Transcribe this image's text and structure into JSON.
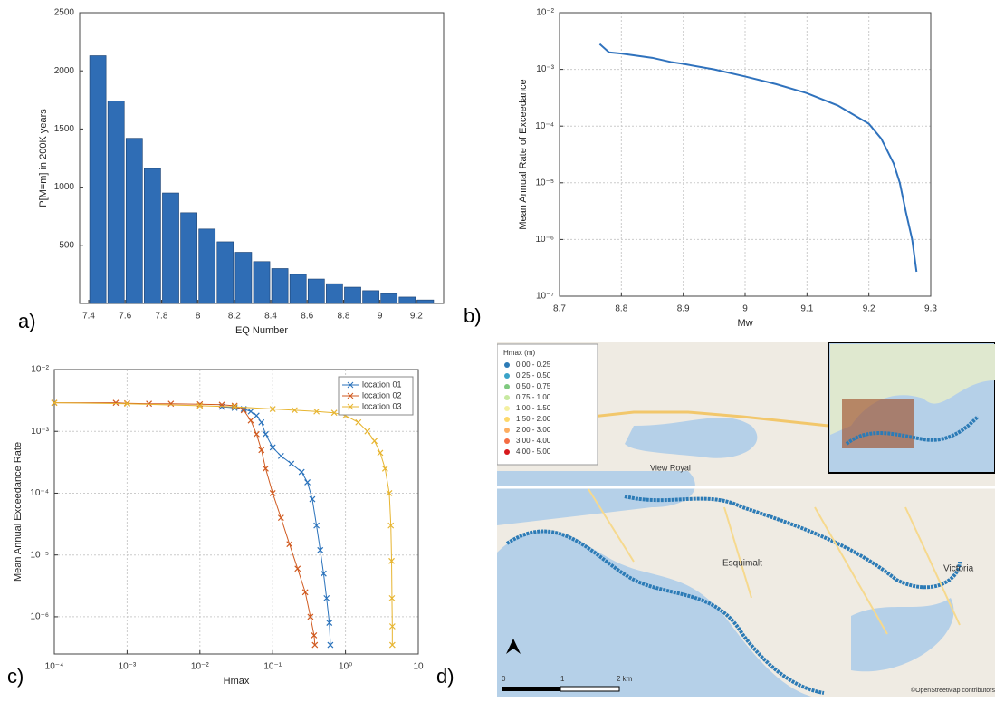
{
  "chart_data": [
    {
      "type": "bar",
      "xlabel": "EQ Number",
      "ylabel": "P[M=m] in 200K years",
      "color": "#2f6db5",
      "x": [
        7.45,
        7.55,
        7.65,
        7.75,
        7.85,
        7.95,
        8.05,
        8.15,
        8.25,
        8.35,
        8.45,
        8.55,
        8.65,
        8.75,
        8.85,
        8.95,
        9.05,
        9.15,
        9.25
      ],
      "values": [
        2130,
        1740,
        1420,
        1160,
        950,
        780,
        640,
        530,
        440,
        360,
        300,
        250,
        210,
        170,
        140,
        110,
        85,
        55,
        30
      ],
      "xlim": [
        7.35,
        9.35
      ],
      "xticks": [
        7.4,
        7.6,
        7.8,
        8,
        8.2,
        8.4,
        8.6,
        8.8,
        9,
        9.2
      ],
      "ylim": [
        0,
        2500
      ],
      "yticks": [
        500,
        1000,
        1500,
        2000,
        2500
      ],
      "grid": false
    },
    {
      "type": "line",
      "xlabel": "Mw",
      "ylabel": "Mean Annual Rate of Exceedance",
      "yscale": "log",
      "grid": true,
      "series": [
        {
          "color": "#2f72bd",
          "x": [
            8.765,
            8.77,
            8.78,
            8.8,
            8.85,
            8.88,
            8.9,
            8.95,
            9.0,
            9.05,
            9.1,
            9.15,
            9.2,
            9.22,
            9.24,
            9.25,
            9.26,
            9.27,
            9.277
          ],
          "values": [
            0.0028,
            0.0025,
            0.002,
            0.0019,
            0.0016,
            0.00135,
            0.00125,
            0.001,
            0.00075,
            0.00055,
            0.00038,
            0.00023,
            0.00011,
            6e-05,
            2.2e-05,
            1e-05,
            3e-06,
            1e-06,
            2.7e-07
          ]
        }
      ],
      "xlim": [
        8.7,
        9.3
      ],
      "xticks": [
        8.7,
        8.8,
        8.9,
        9,
        9.1,
        9.2,
        9.3
      ],
      "ylim": [
        1e-07,
        0.01
      ],
      "yticks": [
        {
          "value": 1e-07,
          "label": "10⁻⁷"
        },
        {
          "value": 1e-06,
          "label": "10⁻⁶"
        },
        {
          "value": 1e-05,
          "label": "10⁻⁵"
        },
        {
          "value": 0.0001,
          "label": "10⁻⁴"
        },
        {
          "value": 0.001,
          "label": "10⁻³"
        },
        {
          "value": 0.01,
          "label": "10⁻²"
        }
      ]
    },
    {
      "type": "line",
      "xlabel": "Hmax",
      "ylabel": "Mean Annual Exceedance Rate",
      "xscale": "log",
      "yscale": "log",
      "grid": true,
      "legend": "upper right",
      "marker": "x",
      "series": [
        {
          "name": "location 01",
          "color": "#2a72bb",
          "x": [
            0.02,
            0.03,
            0.04,
            0.05,
            0.06,
            0.07,
            0.08,
            0.1,
            0.13,
            0.18,
            0.25,
            0.3,
            0.35,
            0.4,
            0.45,
            0.5,
            0.55,
            0.6,
            0.62
          ],
          "values": [
            0.0025,
            0.0024,
            0.0023,
            0.0021,
            0.0018,
            0.0014,
            0.0009,
            0.00055,
            0.0004,
            0.0003,
            0.00022,
            0.00015,
            8e-05,
            3e-05,
            1.2e-05,
            5e-06,
            2e-06,
            8e-07,
            3.5e-07
          ]
        },
        {
          "name": "location 02",
          "color": "#d05a20",
          "x": [
            0.0001,
            0.0007,
            0.001,
            0.002,
            0.004,
            0.01,
            0.02,
            0.03,
            0.04,
            0.05,
            0.06,
            0.07,
            0.08,
            0.1,
            0.13,
            0.17,
            0.22,
            0.28,
            0.33,
            0.37,
            0.38
          ],
          "values": [
            0.0029,
            0.0029,
            0.00285,
            0.0028,
            0.0028,
            0.00275,
            0.0027,
            0.0026,
            0.0022,
            0.0015,
            0.0009,
            0.0005,
            0.00025,
            0.0001,
            4e-05,
            1.5e-05,
            6e-06,
            2.5e-06,
            1e-06,
            5e-07,
            3.5e-07
          ]
        },
        {
          "name": "location 03",
          "color": "#e7b531",
          "x": [
            0.0001,
            0.001,
            0.01,
            0.03,
            0.1,
            0.2,
            0.4,
            0.7,
            1,
            1.5,
            2,
            2.5,
            3,
            3.5,
            4,
            4.2,
            4.3,
            4.35,
            4.4,
            4.4
          ],
          "values": [
            0.0029,
            0.0028,
            0.0026,
            0.0025,
            0.0023,
            0.0022,
            0.0021,
            0.002,
            0.0018,
            0.0014,
            0.001,
            0.0007,
            0.00045,
            0.00025,
            0.0001,
            3e-05,
            8e-06,
            2e-06,
            7e-07,
            3.5e-07
          ]
        }
      ],
      "xlim": [
        0.0001,
        10
      ],
      "xticks": [
        {
          "value": 0.0001,
          "label": "10⁻⁴"
        },
        {
          "value": 0.001,
          "label": "10⁻³"
        },
        {
          "value": 0.01,
          "label": "10⁻²"
        },
        {
          "value": 0.1,
          "label": "10⁻¹"
        },
        {
          "value": 1,
          "label": "10⁰"
        },
        10
      ],
      "ylim": [
        2.5e-07,
        0.01
      ],
      "yticks": [
        {
          "value": 1e-06,
          "label": "10⁻⁶"
        },
        {
          "value": 1e-05,
          "label": "10⁻⁵"
        },
        {
          "value": 0.0001,
          "label": "10⁻⁴"
        },
        {
          "value": 0.001,
          "label": "10⁻³"
        },
        {
          "value": 0.01,
          "label": "10⁻²"
        }
      ]
    }
  ],
  "panel_labels": [
    "a)",
    "b)",
    "c)",
    "d)"
  ],
  "map": {
    "legend_title": "Hmax (m)",
    "legend": [
      {
        "label": "0.00 - 0.25",
        "color": "#2c7bb6"
      },
      {
        "label": "0.25 - 0.50",
        "color": "#3aa3c8"
      },
      {
        "label": "0.50 - 0.75",
        "color": "#7fc97f"
      },
      {
        "label": "0.75 - 1.00",
        "color": "#c7e9a0"
      },
      {
        "label": "1.00 - 1.50",
        "color": "#f4f0a0"
      },
      {
        "label": "1.50 - 2.00",
        "color": "#fdd86a"
      },
      {
        "label": "2.00 - 3.00",
        "color": "#fdae61"
      },
      {
        "label": "3.00 - 4.00",
        "color": "#f46d43"
      },
      {
        "label": "4.00 - 5.00",
        "color": "#d7191c"
      }
    ],
    "places": [
      "View Royal",
      "Esquimalt",
      "Victoria"
    ],
    "scale": [
      "0",
      "1",
      "2 km"
    ],
    "attribution": "©OpenStreetMap contributors"
  }
}
